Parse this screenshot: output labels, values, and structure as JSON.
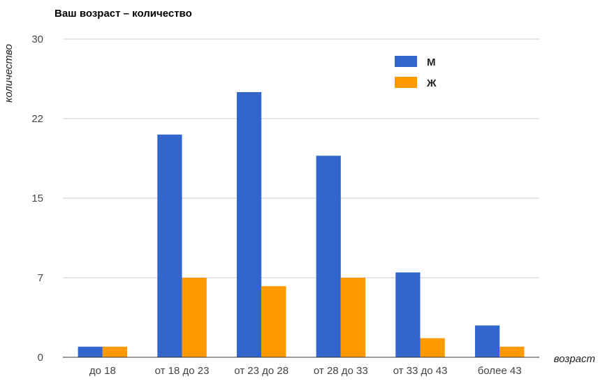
{
  "chart_data": {
    "type": "bar",
    "title": "Ваш возраст – количество",
    "xlabel": "возраст",
    "ylabel": "количество",
    "categories": [
      "до 18",
      "от 18 до 23",
      "от 23 до 28",
      "от 28 до 33",
      "от 33 до 43",
      "более 43"
    ],
    "series": [
      {
        "name": "М",
        "color": "#3366cc",
        "values": [
          1,
          21,
          25,
          19,
          8,
          3
        ]
      },
      {
        "name": "Ж",
        "color": "#ff9900",
        "values": [
          1,
          7.5,
          6.7,
          7.5,
          1.8,
          1
        ]
      }
    ],
    "yticks": [
      "0",
      "7",
      "15",
      "22",
      "30"
    ],
    "ylim": [
      0,
      30
    ],
    "grid": true,
    "legend": "top-right"
  }
}
